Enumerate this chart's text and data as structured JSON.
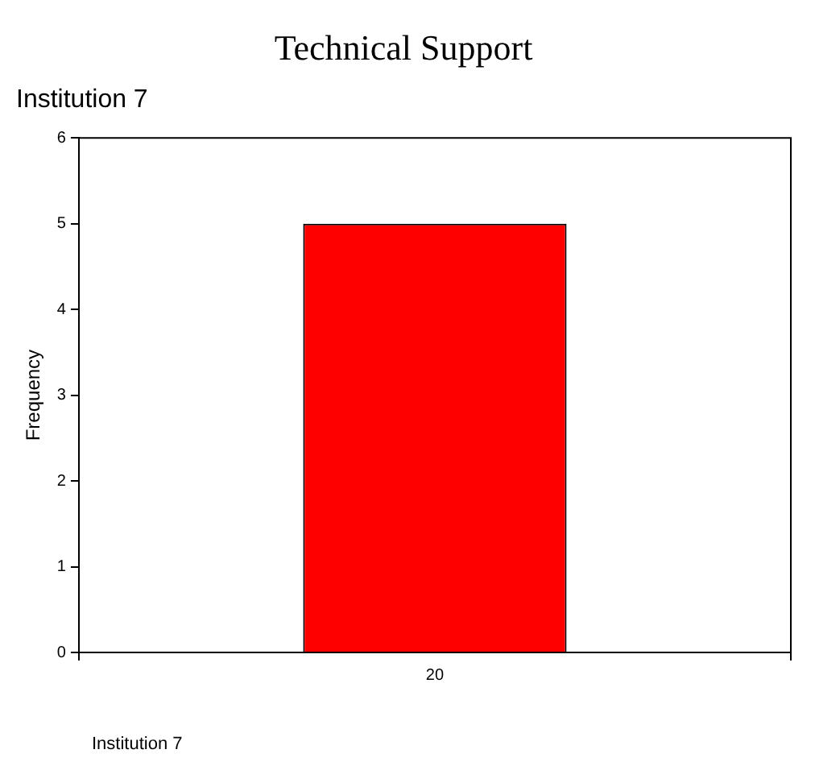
{
  "chart_data": {
    "type": "bar",
    "title": "Technical Support",
    "subtitle": "Institution 7",
    "ylabel": "Frequency",
    "categories": [
      "20"
    ],
    "values": [
      5
    ],
    "color": "#ff0000",
    "ylim": [
      0,
      6
    ],
    "yticks": [
      0,
      1,
      2,
      3,
      4,
      5,
      6
    ],
    "grid": false,
    "legend": false,
    "annotations": [
      "Institution 7"
    ]
  }
}
